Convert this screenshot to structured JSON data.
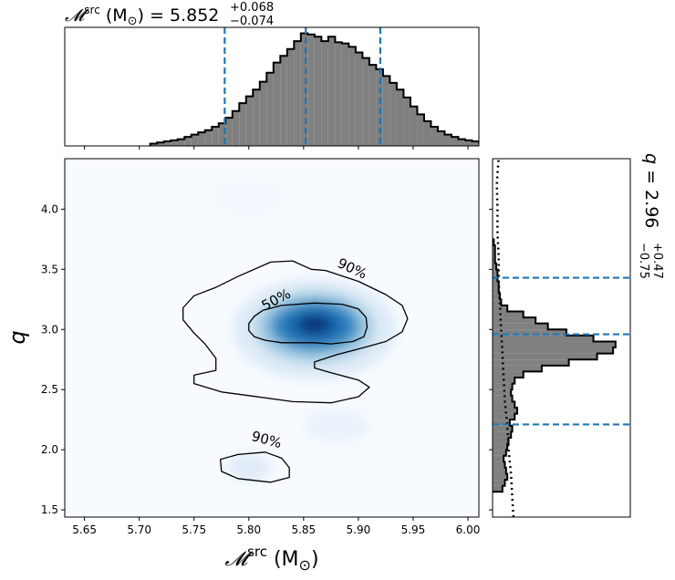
{
  "chart_data": {
    "type": "corner",
    "top": {
      "type": "histogram",
      "title": {
        "symbol": "𝓜",
        "sup": "src",
        "unit": " (M",
        "sun": "⊙",
        "close": ")",
        "eq": " = 5.852",
        "plus": "+0.068",
        "minus": "−0.074"
      },
      "median": 5.852,
      "quantiles": [
        5.778,
        5.852,
        5.92
      ],
      "bin_start": 5.71,
      "bin_width": 0.00625,
      "counts": [
        0.02,
        0.03,
        0.04,
        0.05,
        0.06,
        0.08,
        0.1,
        0.12,
        0.14,
        0.17,
        0.2,
        0.25,
        0.31,
        0.38,
        0.44,
        0.5,
        0.57,
        0.65,
        0.74,
        0.8,
        0.86,
        0.93,
        1.0,
        0.99,
        0.97,
        0.93,
        0.97,
        0.92,
        0.91,
        0.88,
        0.83,
        0.78,
        0.72,
        0.68,
        0.62,
        0.56,
        0.5,
        0.43,
        0.35,
        0.28,
        0.22,
        0.17,
        0.13,
        0.1,
        0.08,
        0.06,
        0.05,
        0.04,
        0.03,
        0.02,
        0.01,
        0.01
      ],
      "xlim": [
        5.632,
        6.01
      ]
    },
    "main": {
      "type": "heatmap_contour",
      "xlabel": {
        "symbol": "𝓜",
        "sup": "src",
        "unit": " (M",
        "sun": "⊙",
        "close": ")"
      },
      "ylabel": "q",
      "xlim": [
        5.632,
        6.01
      ],
      "ylim": [
        1.44,
        4.42
      ],
      "xticks": [
        5.65,
        5.7,
        5.75,
        5.8,
        5.85,
        5.9,
        5.95,
        6.0
      ],
      "xtick_labels": [
        "5.65",
        "5.70",
        "5.75",
        "5.80",
        "5.85",
        "5.90",
        "5.95",
        "6.00"
      ],
      "yticks": [
        1.5,
        2.0,
        2.5,
        3.0,
        3.5,
        4.0
      ],
      "ytick_labels": [
        "1.5",
        "2.0",
        "2.5",
        "3.0",
        "3.5",
        "4.0"
      ],
      "peak": {
        "x": 5.86,
        "y": 3.03
      },
      "contour_labels": [
        "50%",
        "90%",
        "90%"
      ],
      "contour_50": [
        [
          5.813,
          3.16
        ],
        [
          5.83,
          3.2
        ],
        [
          5.86,
          3.22
        ],
        [
          5.885,
          3.21
        ],
        [
          5.9,
          3.17
        ],
        [
          5.907,
          3.1
        ],
        [
          5.908,
          3.02
        ],
        [
          5.905,
          2.94
        ],
        [
          5.895,
          2.9
        ],
        [
          5.875,
          2.88
        ],
        [
          5.86,
          2.89
        ],
        [
          5.845,
          2.89
        ],
        [
          5.83,
          2.89
        ],
        [
          5.815,
          2.91
        ],
        [
          5.805,
          2.94
        ],
        [
          5.8,
          2.99
        ],
        [
          5.8,
          3.05
        ],
        [
          5.805,
          3.11
        ]
      ],
      "contour_90a": [
        [
          5.87,
          3.49
        ],
        [
          5.9,
          3.4
        ],
        [
          5.925,
          3.29
        ],
        [
          5.94,
          3.2
        ],
        [
          5.945,
          3.09
        ],
        [
          5.94,
          2.98
        ],
        [
          5.925,
          2.9
        ],
        [
          5.905,
          2.85
        ],
        [
          5.88,
          2.79
        ],
        [
          5.86,
          2.73
        ],
        [
          5.86,
          2.68
        ],
        [
          5.875,
          2.64
        ],
        [
          5.9,
          2.58
        ],
        [
          5.91,
          2.52
        ],
        [
          5.9,
          2.44
        ],
        [
          5.875,
          2.39
        ],
        [
          5.84,
          2.4
        ],
        [
          5.8,
          2.45
        ],
        [
          5.775,
          2.48
        ],
        [
          5.75,
          2.55
        ],
        [
          5.75,
          2.62
        ],
        [
          5.77,
          2.66
        ],
        [
          5.77,
          2.76
        ],
        [
          5.76,
          2.88
        ],
        [
          5.75,
          2.97
        ],
        [
          5.74,
          3.08
        ],
        [
          5.74,
          3.18
        ],
        [
          5.75,
          3.28
        ],
        [
          5.77,
          3.35
        ],
        [
          5.79,
          3.44
        ],
        [
          5.82,
          3.56
        ],
        [
          5.84,
          3.57
        ],
        [
          5.857,
          3.5
        ]
      ],
      "contour_90b": [
        [
          5.774,
          1.92
        ],
        [
          5.79,
          1.96
        ],
        [
          5.815,
          1.98
        ],
        [
          5.83,
          1.93
        ],
        [
          5.837,
          1.85
        ],
        [
          5.837,
          1.77
        ],
        [
          5.82,
          1.73
        ],
        [
          5.79,
          1.76
        ],
        [
          5.775,
          1.82
        ]
      ]
    },
    "right": {
      "type": "histogram",
      "title": {
        "var": "q",
        "eq": " = 2.96",
        "plus": "+0.47",
        "minus": "−0.75"
      },
      "median": 2.96,
      "quantiles": [
        2.21,
        2.96,
        3.43
      ],
      "bin_start": 1.65,
      "bin_width": 0.05,
      "counts": [
        0.08,
        0.1,
        0.12,
        0.11,
        0.1,
        0.09,
        0.11,
        0.12,
        0.13,
        0.15,
        0.16,
        0.14,
        0.18,
        0.2,
        0.18,
        0.16,
        0.15,
        0.16,
        0.18,
        0.25,
        0.4,
        0.62,
        0.85,
        0.98,
        1.0,
        0.82,
        0.6,
        0.45,
        0.35,
        0.25,
        0.12,
        0.07,
        0.06,
        0.05,
        0.05,
        0.04,
        0.04,
        0.03,
        0.02,
        0.02,
        0.02,
        0.01
      ],
      "prior": [
        [
          0.17,
          1.44
        ],
        [
          0.16,
          1.6
        ],
        [
          0.15,
          1.8
        ],
        [
          0.13,
          2.0
        ],
        [
          0.12,
          2.2
        ],
        [
          0.1,
          2.4
        ],
        [
          0.09,
          2.6
        ],
        [
          0.08,
          2.8
        ],
        [
          0.07,
          3.0
        ],
        [
          0.06,
          3.2
        ],
        [
          0.05,
          3.4
        ],
        [
          0.05,
          3.6
        ],
        [
          0.04,
          3.8
        ],
        [
          0.04,
          4.0
        ],
        [
          0.035,
          4.2
        ],
        [
          0.04,
          4.3
        ],
        [
          0.05,
          4.42
        ]
      ],
      "xlim": [
        0,
        1.12
      ]
    },
    "colors": {
      "hist_fill": "#808080",
      "hist_edge": "#000000",
      "quantile": "#1f77b4",
      "heat_low": "#f7fbff",
      "heat_high": "#08306b",
      "contour": "#000000"
    }
  }
}
